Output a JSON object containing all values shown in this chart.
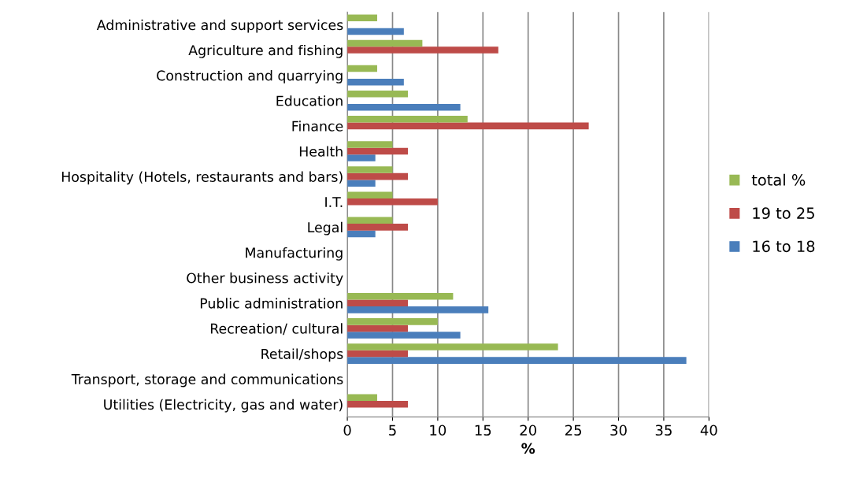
{
  "chart_data": {
    "type": "bar",
    "orientation": "horizontal",
    "xlabel": "%",
    "categories": [
      "Administrative and support services",
      "Agriculture and fishing",
      "Construction and quarrying",
      "Education",
      "Finance",
      "Health",
      "Hospitality (Hotels, restaurants and bars)",
      "I.T.",
      "Legal",
      "Manufacturing",
      "Other business activity",
      "Public administration",
      "Recreation/ cultural",
      "Retail/shops",
      "Transport, storage and communications",
      "Utilities (Electricity, gas and water)"
    ],
    "series": [
      {
        "name": "16 to 18",
        "color": "#4a7ebb",
        "values": [
          6.25,
          null,
          6.25,
          12.5,
          null,
          3.1,
          3.1,
          null,
          3.1,
          null,
          null,
          15.6,
          12.5,
          37.5,
          null,
          null
        ]
      },
      {
        "name": "19 to 25",
        "color": "#be4b48",
        "values": [
          null,
          16.7,
          null,
          null,
          26.7,
          6.7,
          6.7,
          10,
          6.7,
          null,
          null,
          6.7,
          6.7,
          6.7,
          null,
          6.7
        ]
      },
      {
        "name": "total %",
        "color": "#98b954",
        "values": [
          3.3,
          8.3,
          3.3,
          6.7,
          13.3,
          5,
          5,
          5,
          5,
          null,
          null,
          11.7,
          10,
          23.3,
          null,
          3.3
        ]
      }
    ],
    "xlim": [
      0,
      40
    ],
    "xticks": [
      0,
      5,
      10,
      15,
      20,
      25,
      30,
      35,
      40
    ],
    "grid": "x",
    "legend": "right"
  }
}
